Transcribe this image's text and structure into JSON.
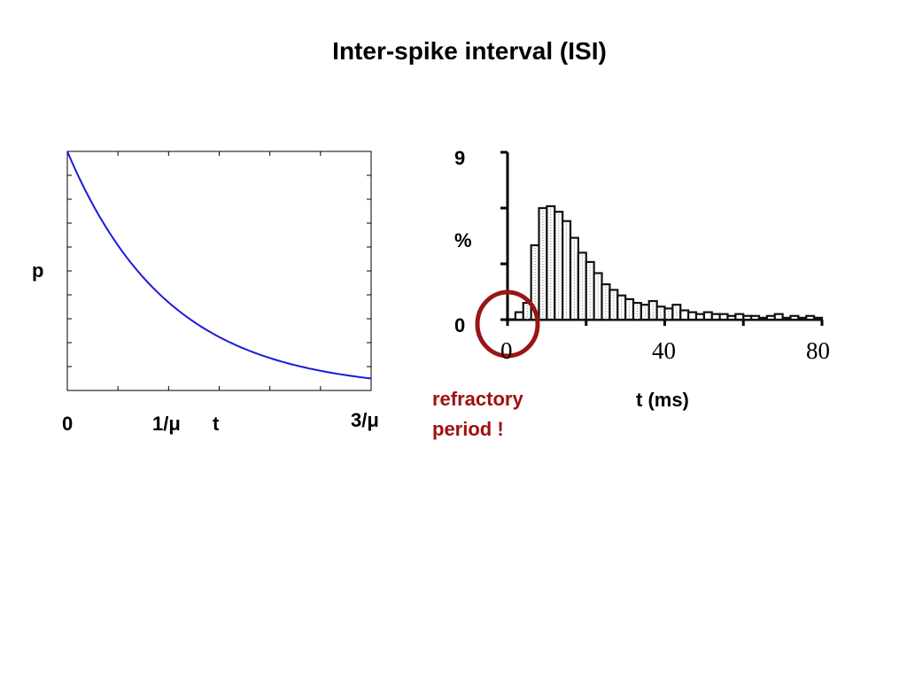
{
  "slide": {
    "title": "Inter-spike interval (ISI)",
    "annotation_line1": "refractory",
    "annotation_line2": "period !"
  },
  "colors": {
    "curve": "#1a1adb",
    "annotation": "#a01010",
    "circle": "#9a1515"
  },
  "chart_data": [
    {
      "type": "line",
      "ylabel": "p",
      "xlabel": "t",
      "x_tick_labels": [
        "0",
        "1/μ",
        "3/μ"
      ],
      "x_ticks": [
        0,
        1,
        3
      ],
      "xlim": [
        0,
        3
      ],
      "ylim": [
        0,
        1
      ],
      "grid": false,
      "series": [
        {
          "function": "exponential decay",
          "x": [
            0,
            0.5,
            1,
            1.5,
            2,
            2.5,
            3
          ],
          "y": [
            1,
            0.61,
            0.37,
            0.22,
            0.14,
            0.08,
            0.05
          ]
        }
      ]
    },
    {
      "type": "bar",
      "xlabel": "t (ms)",
      "ylabel": "%",
      "y_tick_labels": [
        "9",
        "0"
      ],
      "x_tick_labels": [
        "0",
        "40",
        "80"
      ],
      "xlim": [
        0,
        80
      ],
      "ylim": [
        0,
        9
      ],
      "bin_width_ms": 2,
      "bins_start": [
        2,
        4,
        6,
        8,
        10,
        12,
        14,
        16,
        18,
        20,
        22,
        24,
        26,
        28,
        30,
        32,
        34,
        36,
        38,
        40,
        42,
        44,
        46,
        48,
        50,
        52,
        54,
        56,
        58,
        60,
        62,
        64,
        66,
        68,
        70,
        72,
        74,
        76,
        78
      ],
      "values": [
        0.4,
        0.9,
        4.0,
        6.0,
        6.1,
        5.8,
        5.3,
        4.4,
        3.6,
        3.1,
        2.5,
        1.9,
        1.6,
        1.3,
        1.1,
        0.9,
        0.8,
        1.0,
        0.7,
        0.6,
        0.8,
        0.5,
        0.4,
        0.3,
        0.4,
        0.3,
        0.3,
        0.2,
        0.3,
        0.2,
        0.2,
        0.1,
        0.2,
        0.3,
        0.1,
        0.2,
        0.1,
        0.2,
        0.1
      ]
    }
  ]
}
